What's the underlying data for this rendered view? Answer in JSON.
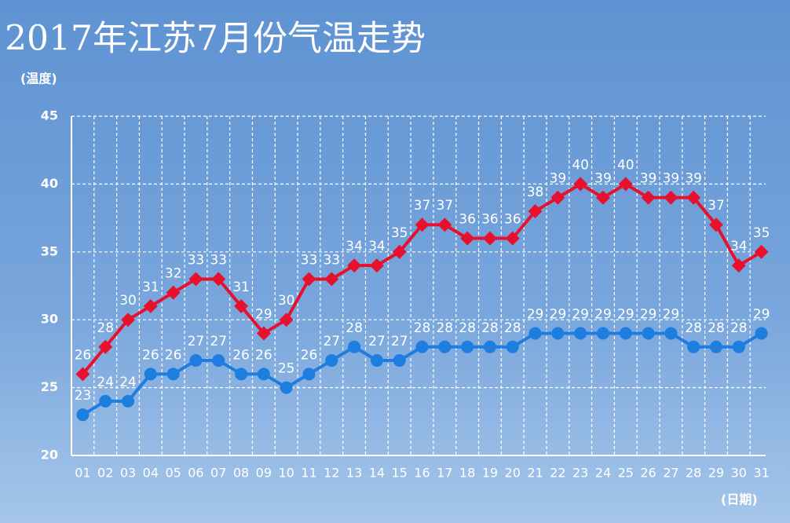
{
  "chart_data": {
    "type": "line",
    "title": "2017年江苏7月份气温走势",
    "y_label": "(温度)",
    "x_label": "(日期)",
    "categories": [
      "01",
      "02",
      "03",
      "04",
      "05",
      "06",
      "07",
      "08",
      "09",
      "10",
      "11",
      "12",
      "13",
      "14",
      "15",
      "16",
      "17",
      "18",
      "19",
      "20",
      "21",
      "22",
      "23",
      "24",
      "25",
      "26",
      "27",
      "28",
      "29",
      "30",
      "31"
    ],
    "series": [
      {
        "color": "#e8112d",
        "marker": "diamond",
        "values": [
          26,
          28,
          30,
          31,
          32,
          33,
          33,
          31,
          29,
          30,
          33,
          33,
          34,
          34,
          35,
          37,
          37,
          36,
          36,
          36,
          38,
          39,
          40,
          39,
          40,
          39,
          39,
          39,
          37,
          34,
          35
        ]
      },
      {
        "color": "#1e7ee0",
        "marker": "circle",
        "values": [
          23,
          24,
          24,
          26,
          26,
          27,
          27,
          26,
          26,
          25,
          26,
          27,
          28,
          27,
          27,
          28,
          28,
          28,
          28,
          28,
          29,
          29,
          29,
          29,
          29,
          29,
          29,
          28,
          28,
          28,
          29
        ]
      }
    ],
    "ylim": [
      20,
      45
    ],
    "yticks": [
      20,
      25,
      30,
      35,
      40,
      45
    ],
    "grid": true
  }
}
